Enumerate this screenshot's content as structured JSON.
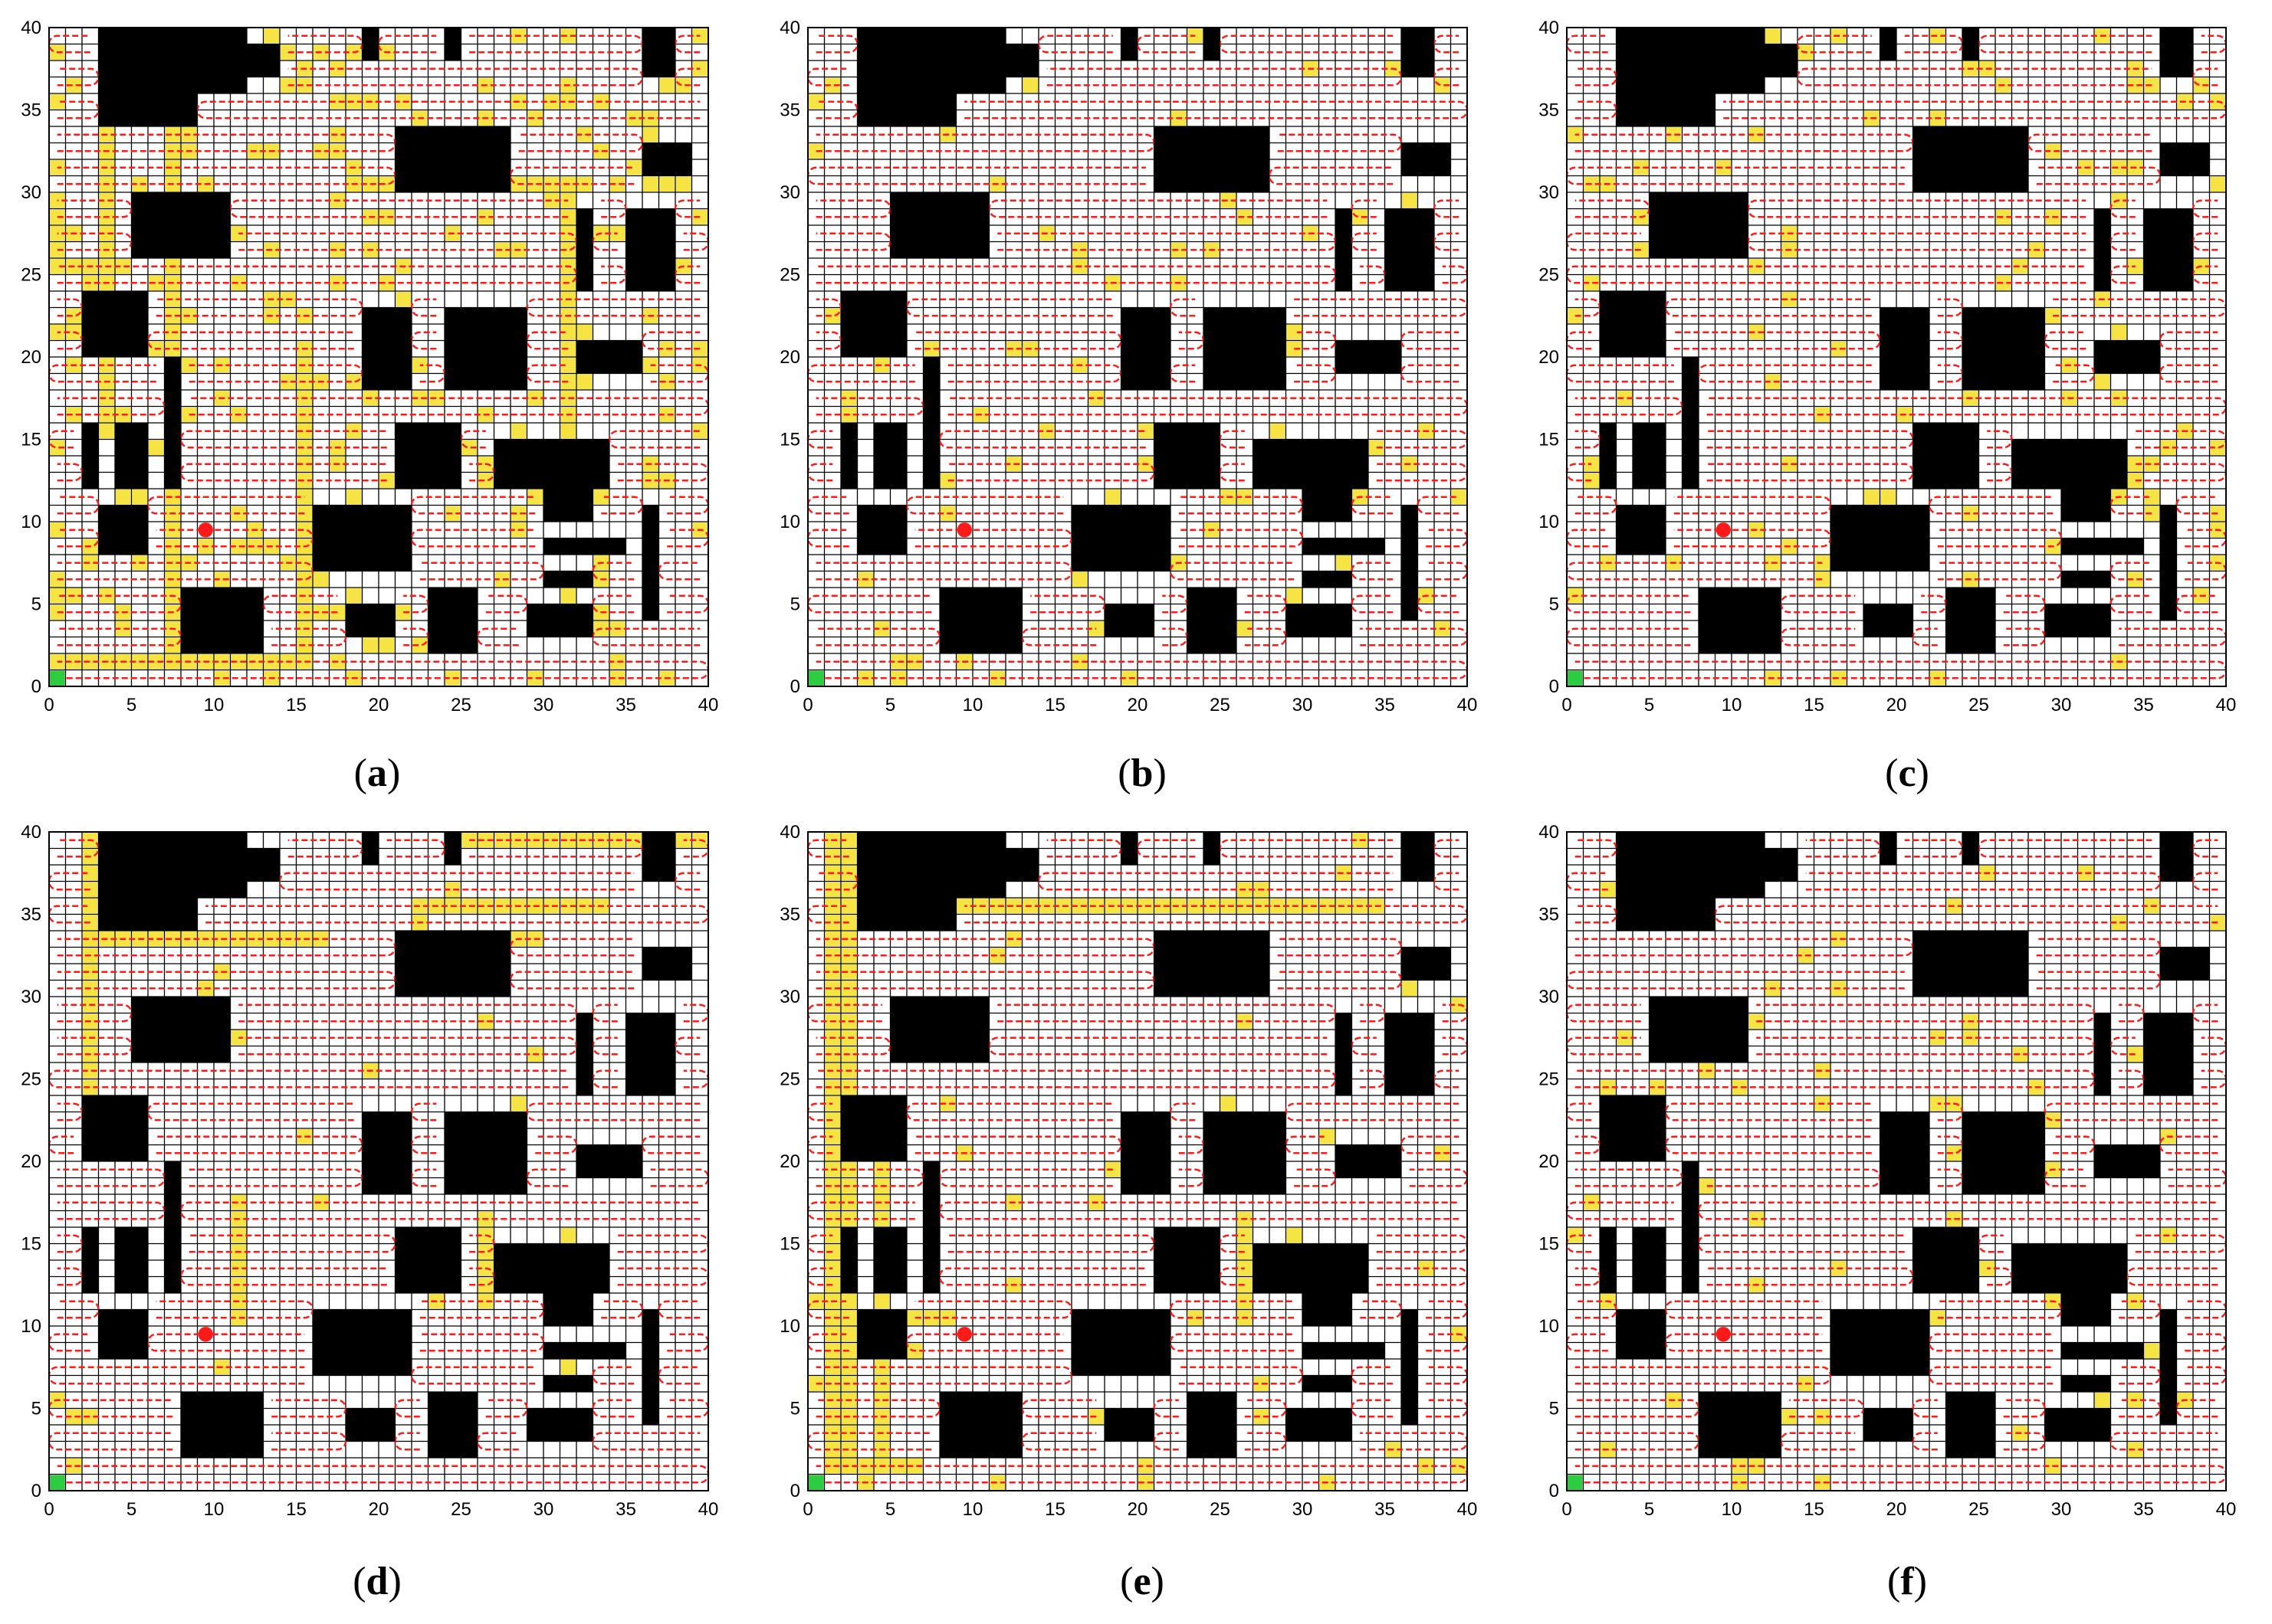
{
  "figure": {
    "grid_size": 40,
    "axis_ticks": [
      0,
      5,
      10,
      15,
      20,
      25,
      30,
      35,
      40
    ],
    "start_color": "#2ecc40",
    "goal_color": "#ff1a1a",
    "obstacle_color": "#000000",
    "path_color": "#ff1a1a",
    "overlap_color": "#f6e23a",
    "grid_color": "#000000"
  },
  "panels": [
    {
      "id": "a",
      "caption_open": "(",
      "caption_letter": "a",
      "caption_close": ")",
      "overlap_level": "high"
    },
    {
      "id": "b",
      "caption_open": "(",
      "caption_letter": "b",
      "caption_close": ")",
      "overlap_level": "low"
    },
    {
      "id": "c",
      "caption_open": "(",
      "caption_letter": "c",
      "caption_close": ")",
      "overlap_level": "medium"
    },
    {
      "id": "d",
      "caption_open": "(",
      "caption_letter": "d",
      "caption_close": ")",
      "overlap_level": "lines"
    },
    {
      "id": "e",
      "caption_open": "(",
      "caption_letter": "e",
      "caption_close": ")",
      "overlap_level": "lines"
    },
    {
      "id": "f",
      "caption_open": "(",
      "caption_letter": "f",
      "caption_close": ")",
      "overlap_level": "low"
    }
  ],
  "chart_data": {
    "type": "heatmap",
    "grid": {
      "x_range": [
        0,
        40
      ],
      "y_range": [
        0,
        40
      ],
      "cell": 1
    },
    "start_cell": [
      0,
      0
    ],
    "goal_cell": [
      9,
      9
    ],
    "obstacles": [
      [
        3,
        34,
        9,
        40
      ],
      [
        9,
        36,
        12,
        40
      ],
      [
        12,
        37,
        14,
        39
      ],
      [
        19,
        38,
        20,
        40
      ],
      [
        24,
        38,
        25,
        40
      ],
      [
        36,
        37,
        38,
        40
      ],
      [
        36,
        31,
        39,
        33
      ],
      [
        21,
        30,
        28,
        34
      ],
      [
        5,
        26,
        11,
        30
      ],
      [
        2,
        20,
        6,
        24
      ],
      [
        19,
        18,
        22,
        23
      ],
      [
        24,
        18,
        29,
        23
      ],
      [
        32,
        19,
        36,
        21
      ],
      [
        35,
        24,
        38,
        29
      ],
      [
        32,
        24,
        33,
        29
      ],
      [
        21,
        12,
        25,
        16
      ],
      [
        27,
        12,
        34,
        15
      ],
      [
        30,
        10,
        33,
        12
      ],
      [
        2,
        12,
        3,
        16
      ],
      [
        4,
        12,
        6,
        16
      ],
      [
        7,
        12,
        8,
        20
      ],
      [
        3,
        8,
        6,
        11
      ],
      [
        8,
        2,
        13,
        6
      ],
      [
        16,
        7,
        22,
        11
      ],
      [
        18,
        3,
        21,
        5
      ],
      [
        23,
        2,
        26,
        6
      ],
      [
        29,
        3,
        33,
        5
      ],
      [
        30,
        8,
        35,
        9
      ],
      [
        30,
        6,
        33,
        7
      ],
      [
        36,
        4,
        37,
        11
      ]
    ]
  }
}
